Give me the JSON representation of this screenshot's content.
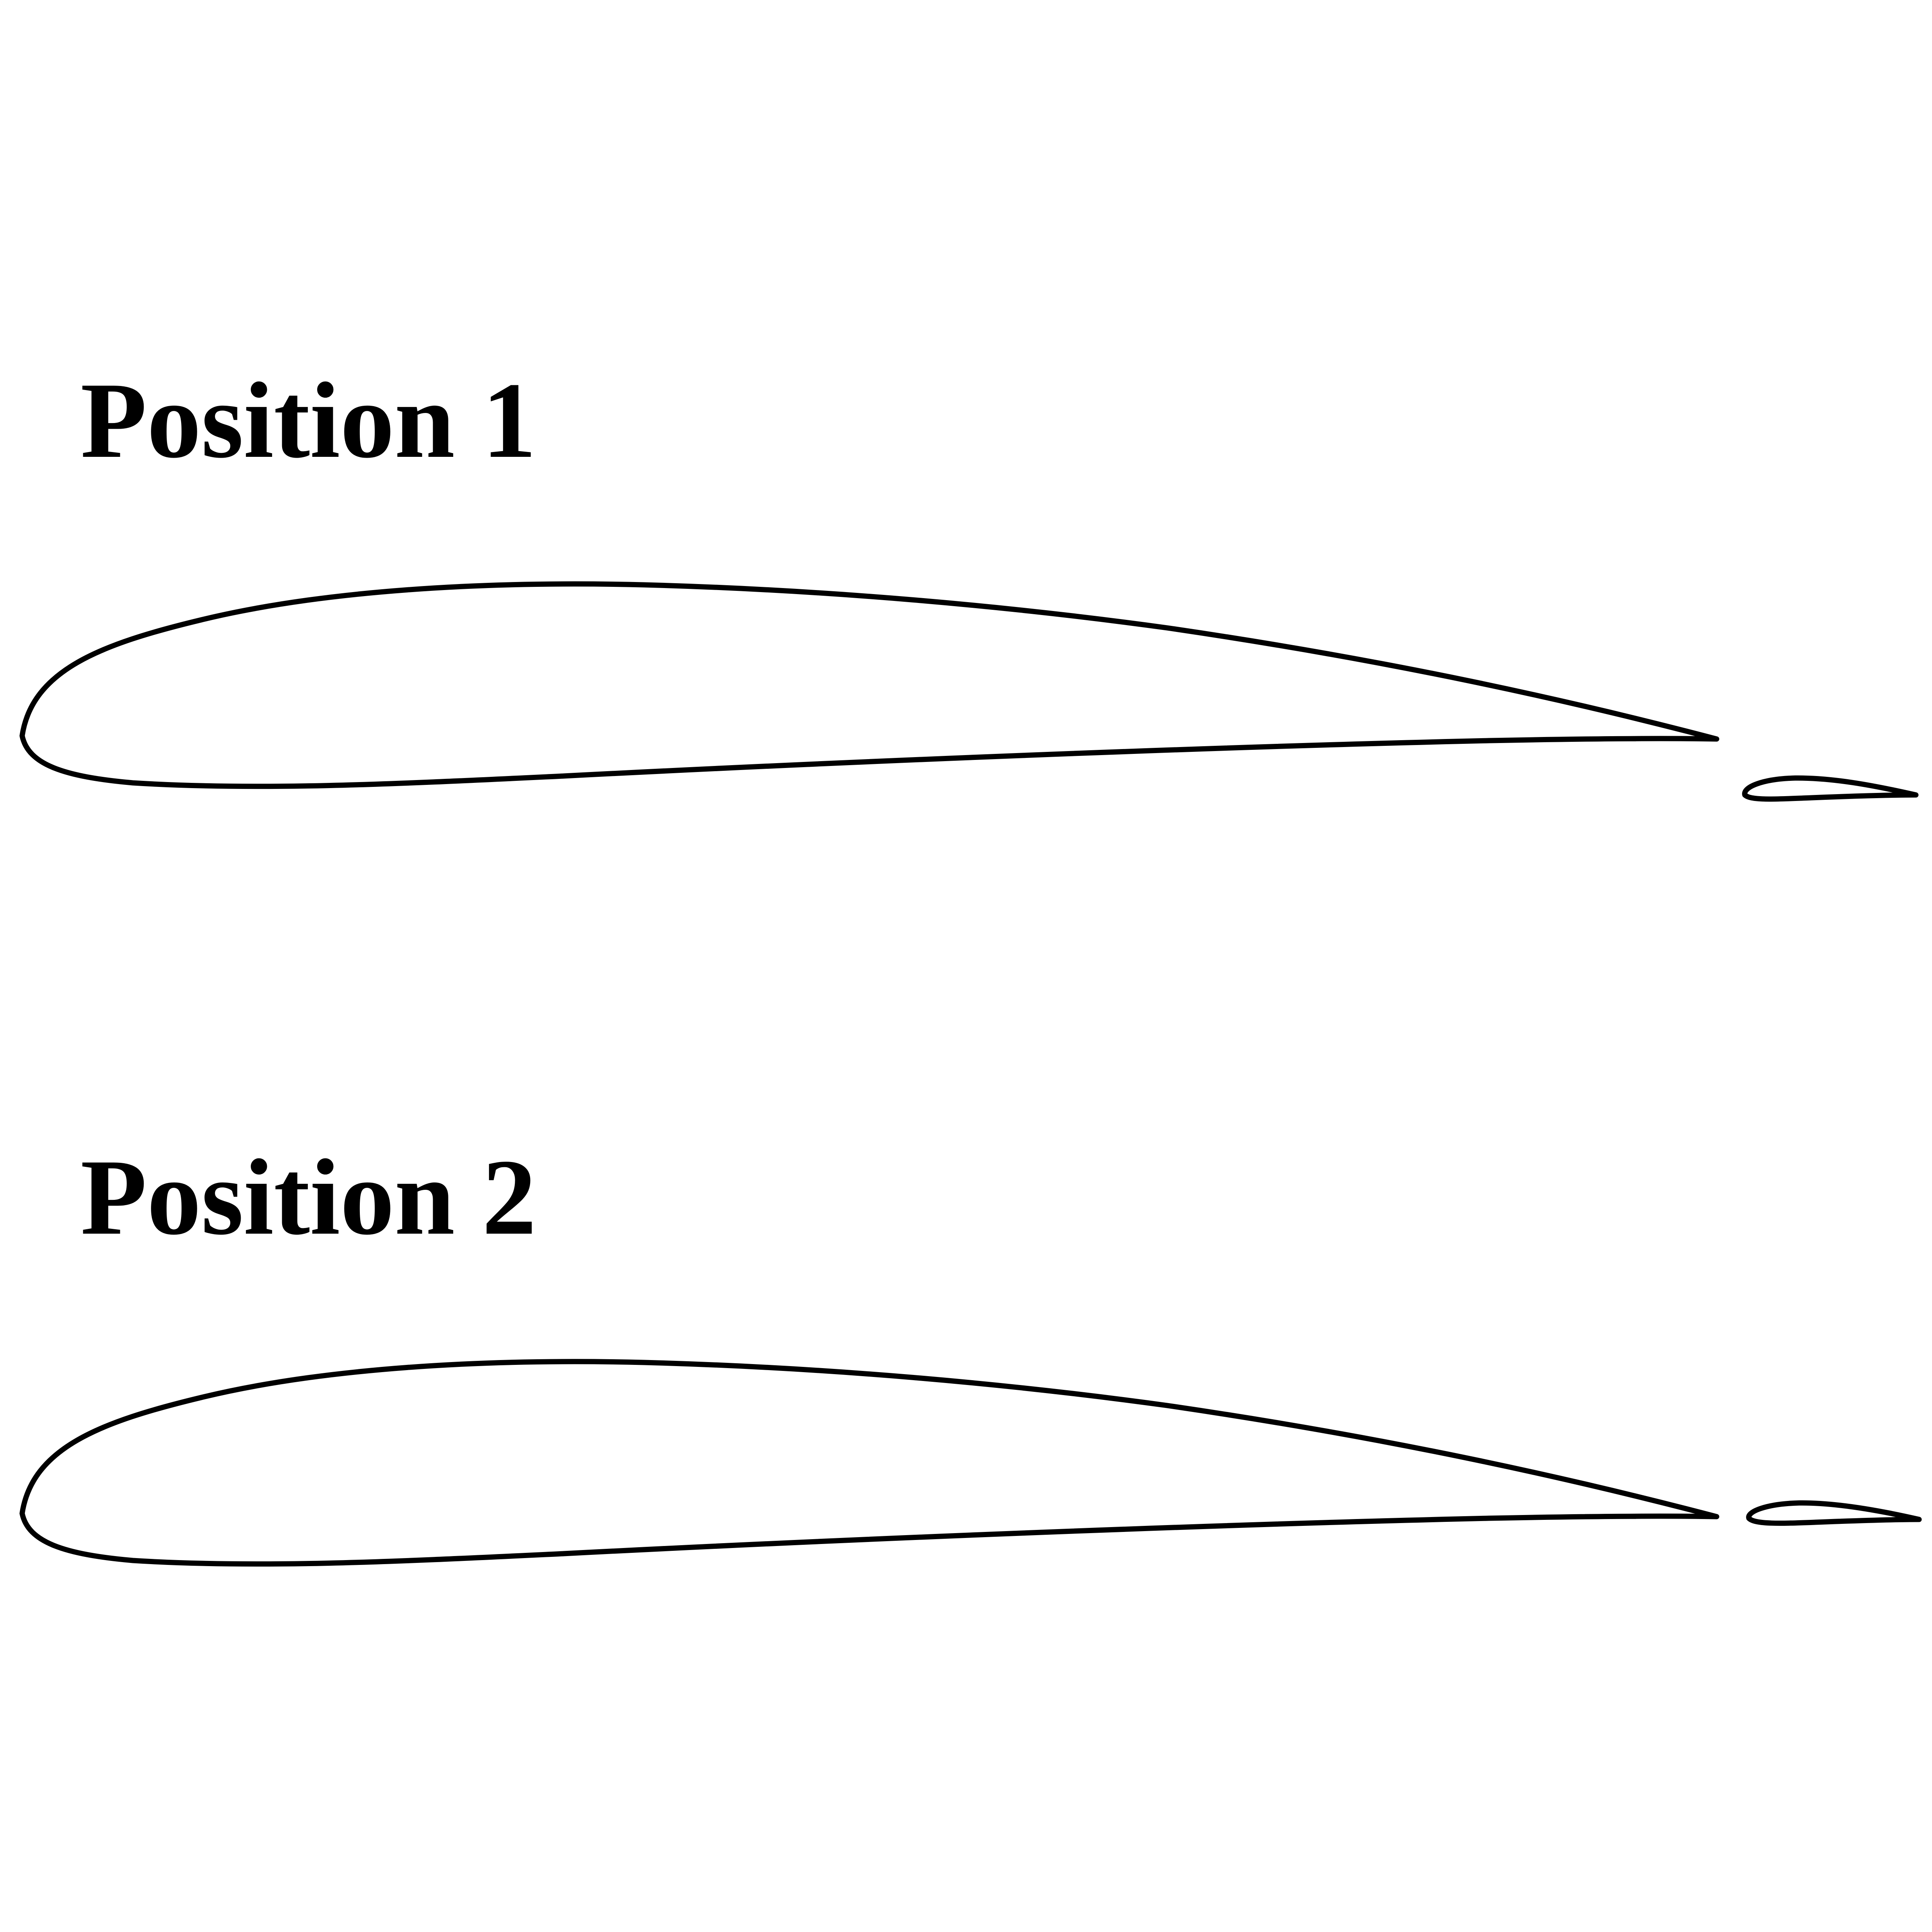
{
  "figure": {
    "panels": [
      {
        "label": "Position 1"
      },
      {
        "label": "Position 2"
      }
    ]
  },
  "colors": {
    "background": "#ffffff",
    "ink": "#000000"
  }
}
